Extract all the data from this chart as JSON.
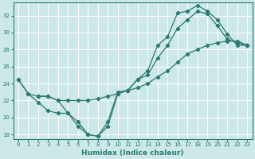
{
  "xlabel": "Humidex (Indice chaleur)",
  "xlim": [
    -0.5,
    23.5
  ],
  "ylim": [
    17.5,
    33.5
  ],
  "yticks": [
    18,
    20,
    22,
    24,
    26,
    28,
    30,
    32
  ],
  "xticks": [
    0,
    1,
    2,
    3,
    4,
    5,
    6,
    7,
    8,
    9,
    10,
    11,
    12,
    13,
    14,
    15,
    16,
    17,
    18,
    19,
    20,
    21,
    22,
    23
  ],
  "bg_color": "#cde8e8",
  "grid_color": "#ffffff",
  "line_color": "#2a7a70",
  "series": [
    {
      "x": [
        0,
        1,
        2,
        3,
        4,
        5,
        6,
        7,
        8,
        9,
        10,
        11,
        12,
        13,
        14,
        15,
        16,
        17,
        18,
        19,
        20,
        21,
        22,
        23
      ],
      "y": [
        24.5,
        22.8,
        22.5,
        22.5,
        22.0,
        20.5,
        19.5,
        18.0,
        17.8,
        19.5,
        23.0,
        23.2,
        24.5,
        25.5,
        28.5,
        29.5,
        32.3,
        32.5,
        33.2,
        32.5,
        31.5,
        29.8,
        28.5,
        28.5
      ]
    },
    {
      "x": [
        0,
        1,
        2,
        3,
        4,
        5,
        6,
        7,
        8,
        9,
        10,
        11,
        12,
        13,
        14,
        15,
        16,
        17,
        18,
        19,
        20,
        21,
        22,
        23
      ],
      "y": [
        24.5,
        22.8,
        21.8,
        20.8,
        20.5,
        20.5,
        19.0,
        18.0,
        17.8,
        19.0,
        22.8,
        23.2,
        24.5,
        25.0,
        27.0,
        28.5,
        30.5,
        31.5,
        32.5,
        32.2,
        30.8,
        29.2,
        28.8,
        28.5
      ]
    },
    {
      "x": [
        2,
        3,
        4,
        5,
        6,
        7,
        8,
        9,
        10,
        11,
        12,
        13,
        14,
        15,
        16,
        17,
        18,
        19,
        20,
        21,
        22,
        23
      ],
      "y": [
        22.5,
        22.5,
        22.0,
        22.0,
        22.0,
        22.0,
        22.2,
        22.5,
        22.8,
        23.2,
        23.5,
        24.0,
        24.8,
        25.5,
        26.5,
        27.5,
        28.0,
        28.5,
        28.8,
        29.0,
        29.0,
        28.5
      ]
    }
  ]
}
